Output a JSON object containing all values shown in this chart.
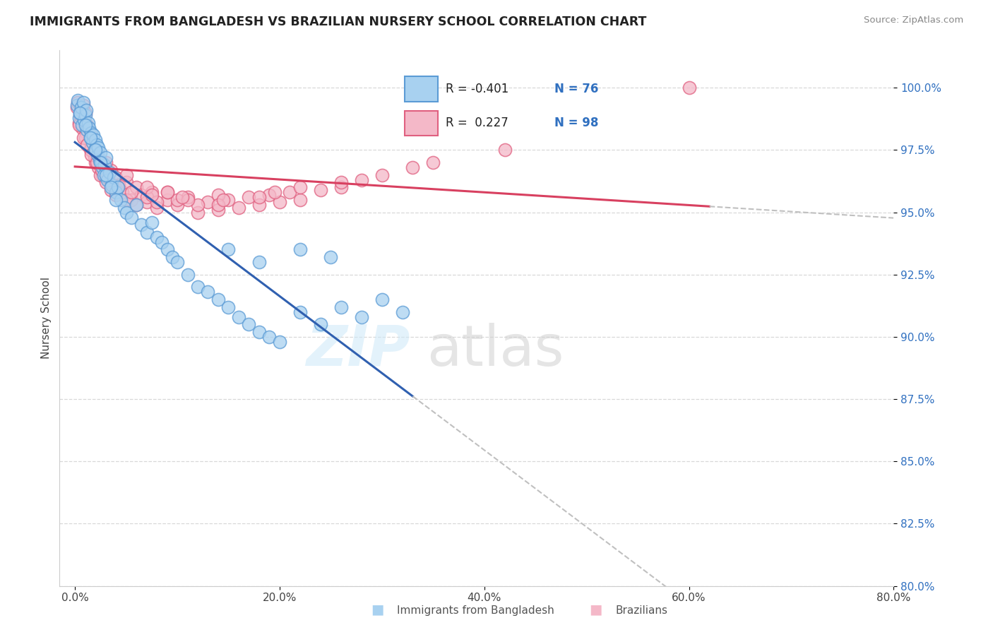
{
  "title": "IMMIGRANTS FROM BANGLADESH VS BRAZILIAN NURSERY SCHOOL CORRELATION CHART",
  "source": "Source: ZipAtlas.com",
  "xlabel_blue": "Immigrants from Bangladesh",
  "xlabel_pink": "Brazilians",
  "ylabel": "Nursery School",
  "xlim": [
    -1.5,
    80.0
  ],
  "ylim": [
    80.0,
    101.5
  ],
  "xticks": [
    0.0,
    20.0,
    40.0,
    60.0,
    80.0
  ],
  "yticks": [
    80.0,
    82.5,
    85.0,
    87.5,
    90.0,
    92.5,
    95.0,
    97.5,
    100.0
  ],
  "blue_color": "#a8d1f0",
  "blue_edge": "#5b9bd5",
  "pink_color": "#f4b8c8",
  "pink_edge": "#e06080",
  "blue_line_color": "#3060b0",
  "pink_line_color": "#d84060",
  "dashed_line_color": "#c0c0c0",
  "R_blue": -0.401,
  "N_blue": 76,
  "R_pink": 0.227,
  "N_pink": 98,
  "background_color": "#ffffff",
  "grid_color": "#d8d8d8",
  "blue_scatter_x": [
    0.2,
    0.3,
    0.4,
    0.5,
    0.6,
    0.7,
    0.8,
    0.9,
    1.0,
    1.1,
    1.2,
    1.3,
    1.4,
    1.5,
    1.6,
    1.7,
    1.8,
    1.9,
    2.0,
    2.1,
    2.2,
    2.3,
    2.4,
    2.5,
    2.6,
    2.7,
    2.8,
    2.9,
    3.0,
    3.2,
    3.4,
    3.6,
    3.8,
    4.0,
    4.2,
    4.5,
    4.8,
    5.0,
    5.5,
    6.0,
    6.5,
    7.0,
    7.5,
    8.0,
    8.5,
    9.0,
    9.5,
    10.0,
    11.0,
    12.0,
    13.0,
    14.0,
    15.0,
    16.0,
    17.0,
    18.0,
    19.0,
    20.0,
    22.0,
    24.0,
    26.0,
    28.0,
    30.0,
    32.0,
    15.0,
    18.0,
    22.0,
    25.0,
    0.5,
    1.0,
    1.5,
    2.0,
    2.5,
    3.0,
    3.5,
    4.0
  ],
  "blue_scatter_y": [
    99.3,
    99.5,
    98.8,
    99.0,
    99.2,
    98.5,
    99.4,
    98.7,
    98.9,
    99.1,
    98.3,
    98.6,
    98.4,
    98.0,
    98.2,
    97.8,
    98.1,
    97.5,
    97.9,
    97.7,
    97.3,
    97.6,
    97.1,
    97.4,
    97.0,
    96.8,
    96.5,
    96.9,
    97.2,
    96.3,
    96.6,
    96.1,
    96.4,
    95.8,
    96.0,
    95.5,
    95.2,
    95.0,
    94.8,
    95.3,
    94.5,
    94.2,
    94.6,
    94.0,
    93.8,
    93.5,
    93.2,
    93.0,
    92.5,
    92.0,
    91.8,
    91.5,
    91.2,
    90.8,
    90.5,
    90.2,
    90.0,
    89.8,
    91.0,
    90.5,
    91.2,
    90.8,
    91.5,
    91.0,
    93.5,
    93.0,
    93.5,
    93.2,
    99.0,
    98.5,
    98.0,
    97.5,
    97.0,
    96.5,
    96.0,
    95.5
  ],
  "pink_scatter_x": [
    0.2,
    0.3,
    0.4,
    0.5,
    0.6,
    0.7,
    0.8,
    0.9,
    1.0,
    1.1,
    1.2,
    1.3,
    1.4,
    1.5,
    1.6,
    1.7,
    1.8,
    1.9,
    2.0,
    2.1,
    2.2,
    2.3,
    2.5,
    2.7,
    2.9,
    3.1,
    3.3,
    3.5,
    3.8,
    4.0,
    4.3,
    4.6,
    5.0,
    5.5,
    6.0,
    6.5,
    7.0,
    7.5,
    8.0,
    9.0,
    10.0,
    11.0,
    12.0,
    13.0,
    14.0,
    15.0,
    16.0,
    17.0,
    18.0,
    19.0,
    20.0,
    21.0,
    22.0,
    24.0,
    26.0,
    28.0,
    30.0,
    35.0,
    60.0,
    1.0,
    1.5,
    2.0,
    2.5,
    3.0,
    3.5,
    4.0,
    5.0,
    6.0,
    7.0,
    8.0,
    9.0,
    10.0,
    12.0,
    14.0,
    3.0,
    5.0,
    7.0,
    9.0,
    11.0,
    14.0,
    18.0,
    22.0,
    0.4,
    0.8,
    1.2,
    1.6,
    2.1,
    2.6,
    3.2,
    4.2,
    5.5,
    7.5,
    10.5,
    14.5,
    19.5,
    26.0,
    33.0,
    42.0
  ],
  "pink_scatter_y": [
    99.2,
    99.4,
    98.6,
    98.9,
    99.1,
    98.4,
    99.3,
    98.7,
    99.0,
    98.2,
    98.5,
    98.3,
    97.9,
    98.1,
    97.6,
    97.8,
    97.4,
    97.2,
    97.5,
    97.0,
    97.3,
    96.8,
    97.1,
    96.5,
    96.9,
    96.6,
    96.3,
    96.7,
    96.0,
    96.4,
    96.1,
    95.8,
    96.2,
    95.5,
    96.0,
    95.7,
    95.4,
    95.8,
    95.2,
    95.5,
    95.3,
    95.6,
    95.0,
    95.4,
    95.1,
    95.5,
    95.2,
    95.6,
    95.3,
    95.7,
    95.4,
    95.8,
    95.5,
    95.9,
    96.0,
    96.3,
    96.5,
    97.0,
    100.0,
    98.0,
    97.5,
    97.0,
    96.5,
    96.2,
    95.9,
    95.7,
    95.5,
    95.3,
    95.6,
    95.4,
    95.8,
    95.5,
    95.3,
    95.7,
    97.0,
    96.5,
    96.0,
    95.8,
    95.5,
    95.3,
    95.6,
    96.0,
    98.5,
    98.0,
    97.7,
    97.3,
    97.0,
    96.7,
    96.4,
    96.0,
    95.8,
    95.7,
    95.6,
    95.5,
    95.8,
    96.2,
    96.8,
    97.5
  ]
}
